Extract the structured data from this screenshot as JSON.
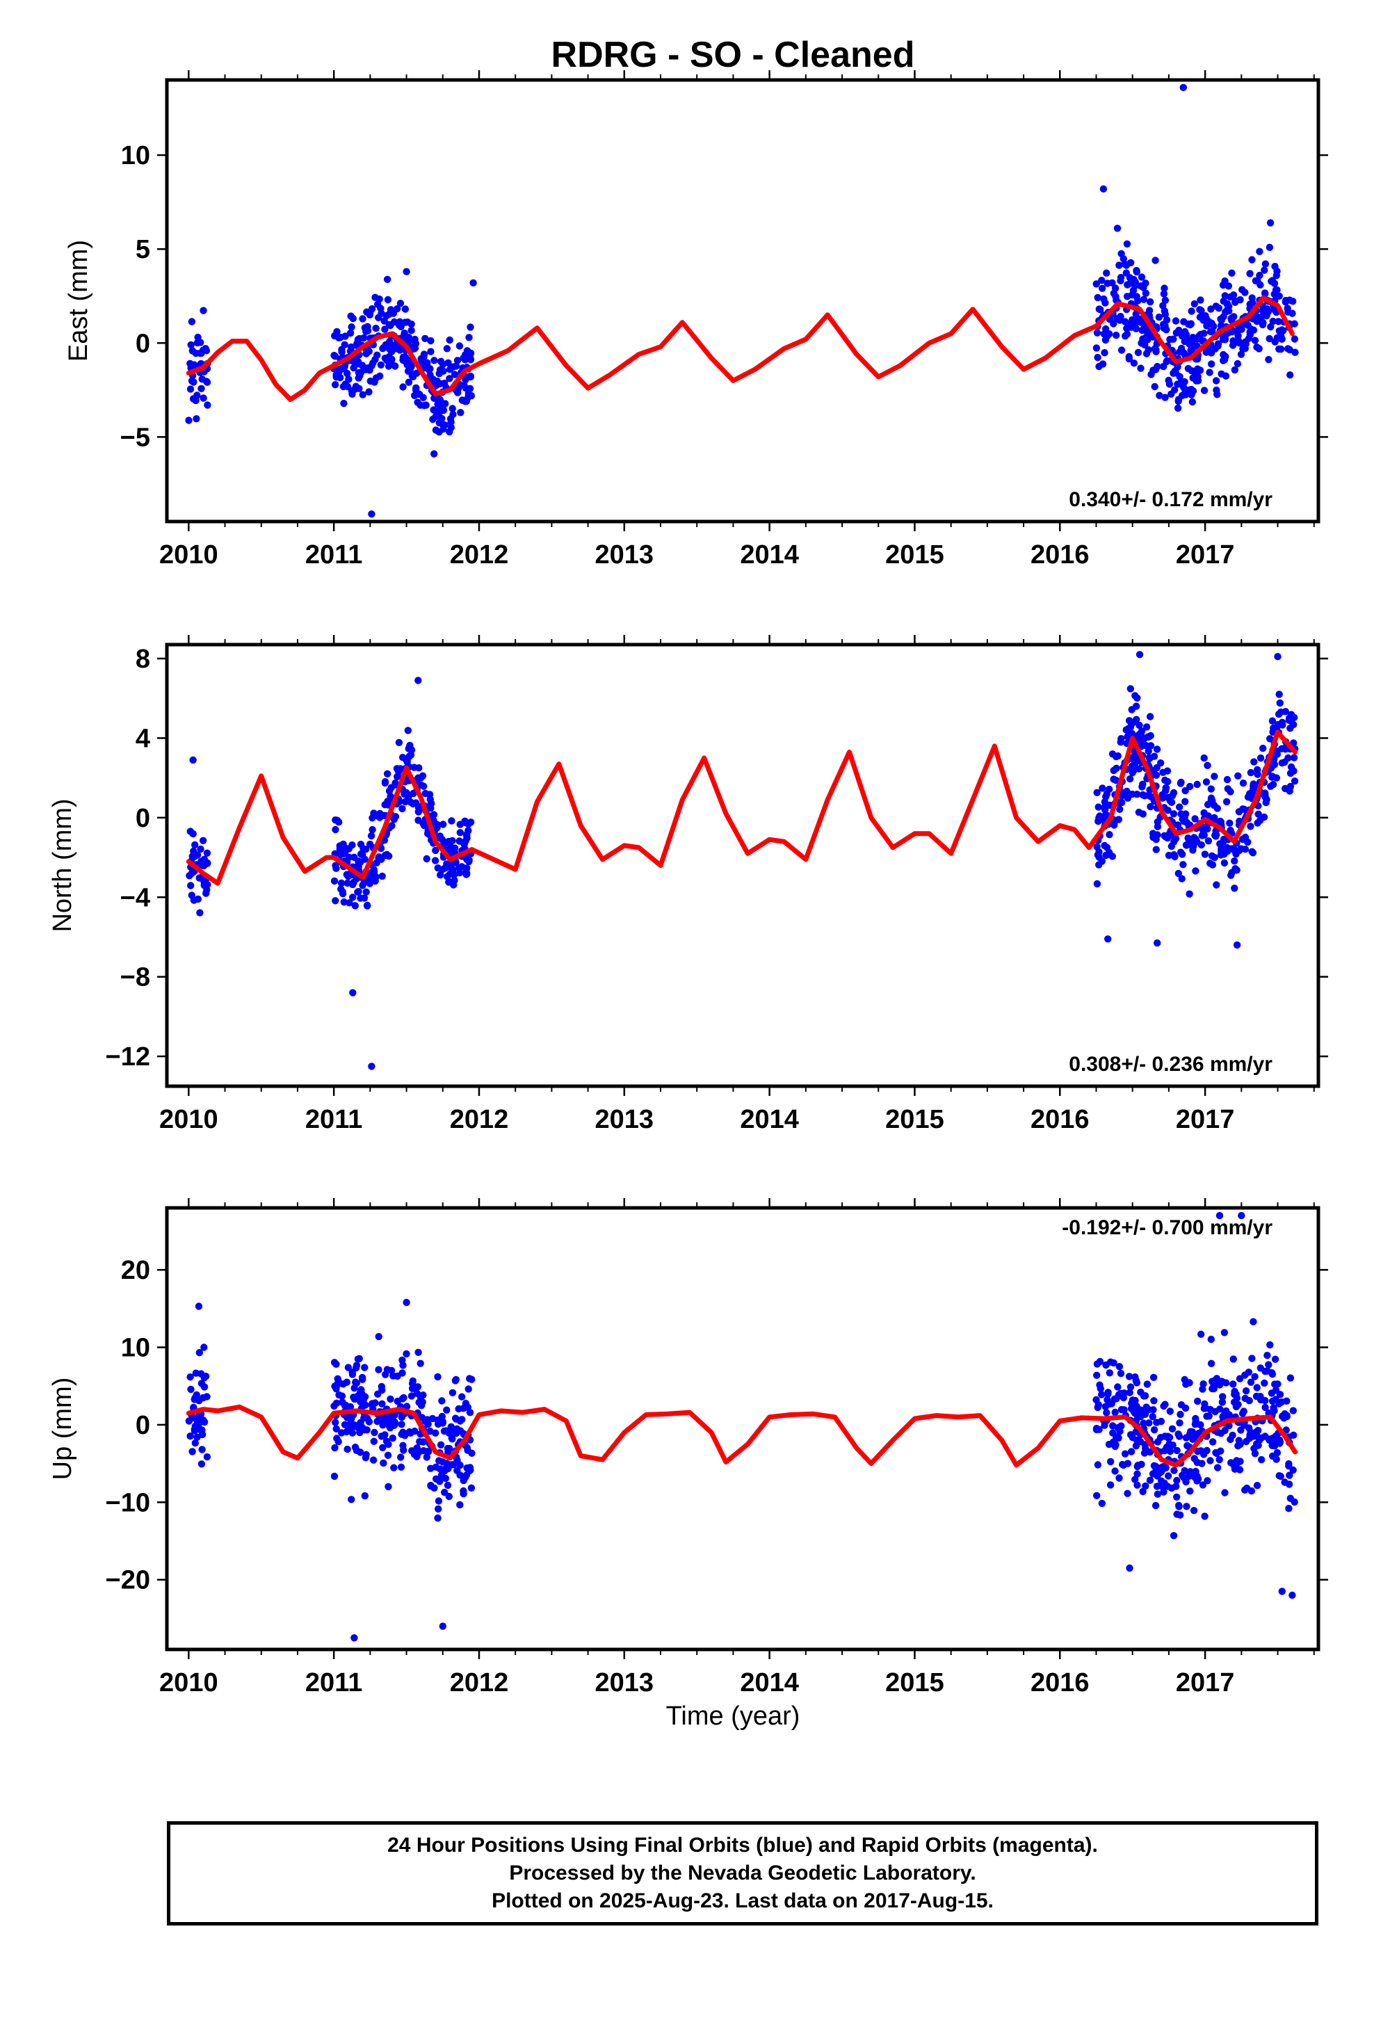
{
  "title": "RDRG  - SO - Cleaned",
  "caption": {
    "line1": "24 Hour Positions Using Final Orbits (blue) and Rapid Orbits (magenta).",
    "line2": "Processed by the Nevada Geodetic Laboratory.",
    "line3": "Plotted on 2025-Aug-23. Last data on 2017-Aug-15."
  },
  "colors": {
    "points": "#0000ff",
    "model": "#ff0000",
    "frame": "#000000",
    "background": "#ffffff"
  },
  "chart_data": [
    {
      "type": "scatter",
      "component": "east",
      "ylabel": "East (mm)",
      "xlabel": "",
      "xlim": [
        2009.85,
        2017.78
      ],
      "ylim": [
        -9.5,
        14
      ],
      "yticks": [
        -5,
        0,
        5,
        10
      ],
      "xticks": [
        2010,
        2011,
        2012,
        2013,
        2014,
        2015,
        2016,
        2017
      ],
      "rate_label": "0.340+/- 0.172 mm/yr",
      "segments": [
        {
          "start": 2010.0,
          "end": 2010.13,
          "amp": 2.0
        },
        {
          "start": 2011.0,
          "end": 2011.95,
          "amp": 2.0
        },
        {
          "start": 2016.25,
          "end": 2017.62,
          "amp": 2.2
        }
      ],
      "series": [
        {
          "name": "",
          "kind": "model",
          "x": [
            2010.0,
            2010.1,
            2010.2,
            2010.3,
            2010.4,
            2010.5,
            2010.6,
            2010.7,
            2010.8,
            2010.9,
            2011.0,
            2011.1,
            2011.2,
            2011.3,
            2011.4,
            2011.5,
            2011.6,
            2011.7,
            2011.8,
            2011.9,
            2012.0,
            2012.2,
            2012.4,
            2012.6,
            2012.75,
            2012.9,
            2013.1,
            2013.25,
            2013.4,
            2013.6,
            2013.75,
            2013.9,
            2014.1,
            2014.25,
            2014.4,
            2014.6,
            2014.75,
            2014.9,
            2015.1,
            2015.25,
            2015.4,
            2015.6,
            2015.75,
            2015.9,
            2016.1,
            2016.25,
            2016.4,
            2016.55,
            2016.7,
            2016.8,
            2016.9,
            2017.0,
            2017.1,
            2017.2,
            2017.3,
            2017.4,
            2017.5,
            2017.6
          ],
          "y": [
            -1.6,
            -1.3,
            -0.5,
            0.1,
            0.1,
            -0.9,
            -2.2,
            -3.0,
            -2.5,
            -1.6,
            -1.2,
            -0.8,
            -0.2,
            0.3,
            0.5,
            -0.2,
            -1.5,
            -2.7,
            -2.5,
            -1.5,
            -1.1,
            -0.4,
            0.8,
            -1.2,
            -2.4,
            -1.7,
            -0.6,
            -0.2,
            1.1,
            -0.8,
            -2.0,
            -1.4,
            -0.3,
            0.2,
            1.5,
            -0.6,
            -1.8,
            -1.2,
            0.0,
            0.5,
            1.8,
            -0.2,
            -1.4,
            -0.8,
            0.4,
            0.9,
            2.1,
            1.8,
            0.0,
            -1.0,
            -0.8,
            -0.1,
            0.6,
            1.0,
            1.4,
            2.4,
            2.0,
            0.5
          ]
        },
        {
          "name": "",
          "kind": "points",
          "x": [
            2011.69,
            2016.85,
            2011.26,
            2016.3,
            2017.45,
            2011.5,
            2011.96
          ],
          "y": [
            -5.9,
            13.6,
            -9.1,
            8.2,
            6.4,
            3.8,
            3.2
          ]
        }
      ]
    },
    {
      "type": "scatter",
      "component": "north",
      "ylabel": "North (mm)",
      "xlabel": "",
      "xlim": [
        2009.85,
        2017.78
      ],
      "ylim": [
        -13.5,
        8.7
      ],
      "yticks": [
        -12,
        -8,
        -4,
        0,
        4,
        8
      ],
      "xticks": [
        2010,
        2011,
        2012,
        2013,
        2014,
        2015,
        2016,
        2017
      ],
      "rate_label": "0.308+/- 0.236 mm/yr",
      "segments": [
        {
          "start": 2010.0,
          "end": 2010.13,
          "amp": 1.6
        },
        {
          "start": 2011.0,
          "end": 2011.95,
          "amp": 1.6
        },
        {
          "start": 2016.25,
          "end": 2017.62,
          "amp": 2.0
        }
      ],
      "series": [
        {
          "name": "",
          "kind": "model",
          "x": [
            2010.0,
            2010.1,
            2010.2,
            2010.35,
            2010.5,
            2010.65,
            2010.8,
            2010.95,
            2011.0,
            2011.1,
            2011.2,
            2011.35,
            2011.5,
            2011.6,
            2011.7,
            2011.8,
            2011.95,
            2012.1,
            2012.25,
            2012.4,
            2012.55,
            2012.7,
            2012.85,
            2013.0,
            2013.1,
            2013.25,
            2013.4,
            2013.55,
            2013.7,
            2013.85,
            2014.0,
            2014.1,
            2014.25,
            2014.4,
            2014.55,
            2014.7,
            2014.85,
            2015.0,
            2015.1,
            2015.25,
            2015.4,
            2015.55,
            2015.7,
            2015.85,
            2016.0,
            2016.1,
            2016.2,
            2016.35,
            2016.5,
            2016.6,
            2016.7,
            2016.8,
            2016.9,
            2017.0,
            2017.1,
            2017.2,
            2017.35,
            2017.5,
            2017.62
          ],
          "y": [
            -2.2,
            -2.8,
            -3.3,
            -0.5,
            2.1,
            -1.0,
            -2.7,
            -2.0,
            -2.0,
            -2.5,
            -3.0,
            -0.5,
            2.5,
            1.0,
            -1.2,
            -2.1,
            -1.6,
            -2.1,
            -2.6,
            0.8,
            2.7,
            -0.4,
            -2.1,
            -1.4,
            -1.5,
            -2.4,
            0.9,
            3.0,
            0.2,
            -1.8,
            -1.1,
            -1.2,
            -2.1,
            0.9,
            3.3,
            0.0,
            -1.5,
            -0.8,
            -0.8,
            -1.8,
            0.9,
            3.6,
            0.0,
            -1.2,
            -0.4,
            -0.6,
            -1.5,
            0.0,
            4.0,
            2.5,
            0.3,
            -0.8,
            -0.6,
            -0.1,
            -0.5,
            -1.2,
            0.9,
            4.3,
            3.3
          ]
        },
        {
          "name": "",
          "kind": "points",
          "x": [
            2011.26,
            2011.13,
            2011.58,
            2016.55,
            2016.67,
            2016.33,
            2017.5,
            2017.22,
            2010.03
          ],
          "y": [
            -12.5,
            -8.8,
            6.9,
            8.2,
            -6.3,
            -6.1,
            8.1,
            -6.4,
            2.9
          ]
        }
      ]
    },
    {
      "type": "scatter",
      "component": "up",
      "ylabel": "Up (mm)",
      "xlabel": "Time (year)",
      "xlim": [
        2009.85,
        2017.78
      ],
      "ylim": [
        -29,
        28
      ],
      "yticks": [
        -20,
        -10,
        0,
        10,
        20
      ],
      "xticks": [
        2010,
        2011,
        2012,
        2013,
        2014,
        2015,
        2016,
        2017
      ],
      "rate_label": "-0.192+/- 0.700 mm/yr",
      "segments": [
        {
          "start": 2010.0,
          "end": 2010.13,
          "amp": 6.0
        },
        {
          "start": 2011.0,
          "end": 2011.95,
          "amp": 6.5
        },
        {
          "start": 2016.25,
          "end": 2017.62,
          "amp": 7.0
        }
      ],
      "series": [
        {
          "name": "",
          "kind": "model",
          "x": [
            2010.0,
            2010.1,
            2010.2,
            2010.35,
            2010.5,
            2010.65,
            2010.75,
            2010.9,
            2011.0,
            2011.15,
            2011.3,
            2011.45,
            2011.55,
            2011.7,
            2011.8,
            2011.9,
            2012.0,
            2012.15,
            2012.3,
            2012.45,
            2012.6,
            2012.7,
            2012.85,
            2013.0,
            2013.15,
            2013.3,
            2013.45,
            2013.6,
            2013.7,
            2013.85,
            2014.0,
            2014.15,
            2014.3,
            2014.45,
            2014.6,
            2014.7,
            2014.85,
            2015.0,
            2015.15,
            2015.3,
            2015.45,
            2015.6,
            2015.7,
            2015.85,
            2016.0,
            2016.15,
            2016.3,
            2016.45,
            2016.55,
            2016.7,
            2016.8,
            2016.9,
            2017.0,
            2017.15,
            2017.3,
            2017.45,
            2017.55,
            2017.62
          ],
          "y": [
            1.5,
            2.0,
            1.8,
            2.3,
            1.0,
            -3.5,
            -4.3,
            -1.0,
            1.5,
            1.8,
            1.5,
            2.0,
            1.5,
            -3.5,
            -4.3,
            -2.0,
            1.3,
            1.8,
            1.6,
            2.0,
            0.5,
            -4.0,
            -4.5,
            -1.0,
            1.3,
            1.4,
            1.6,
            -1.0,
            -4.8,
            -2.5,
            1.0,
            1.3,
            1.4,
            1.0,
            -3.0,
            -5.0,
            -2.0,
            0.8,
            1.2,
            1.0,
            1.2,
            -2.0,
            -5.2,
            -3.0,
            0.5,
            0.9,
            0.8,
            1.0,
            -0.5,
            -4.5,
            -5.2,
            -3.5,
            -1.0,
            0.5,
            0.8,
            1.0,
            -1.5,
            -3.5
          ]
        },
        {
          "name": "",
          "kind": "points",
          "x": [
            2011.14,
            2011.75,
            2017.1,
            2017.25,
            2011.5,
            2010.07,
            2016.48,
            2017.6,
            2017.53
          ],
          "y": [
            -27.5,
            -26.0,
            27.0,
            27.0,
            15.8,
            15.3,
            -18.5,
            -22.0,
            -21.5
          ]
        }
      ]
    }
  ]
}
